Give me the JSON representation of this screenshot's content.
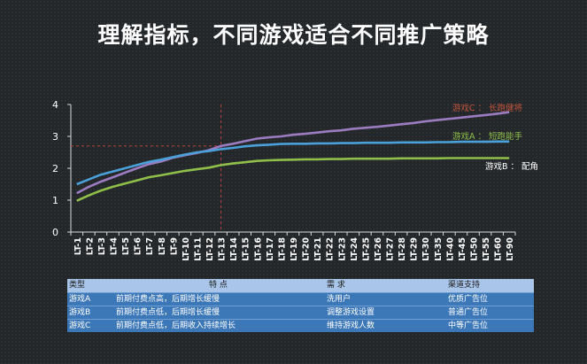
{
  "title": "理解指标，不同游戏适合不同推广策略",
  "chart_data": {
    "type": "line",
    "x": [
      "LT-1",
      "LT-2",
      "LT-3",
      "LT-4",
      "LT-5",
      "LT-6",
      "LT-7",
      "LT-8",
      "LT-9",
      "LT-10",
      "LT-11",
      "LT-12",
      "LT-13",
      "LT-14",
      "LT-15",
      "LT-16",
      "LT-17",
      "LT-18",
      "LT-19",
      "LT-20",
      "LT-21",
      "LT-22",
      "LT-23",
      "LT-24",
      "LT-25",
      "LT-26",
      "LT-27",
      "LT-28",
      "LT-29",
      "LT-30",
      "LT-35",
      "LT-40",
      "LT-45",
      "LT-50",
      "LT-55",
      "LT-60",
      "LT-90"
    ],
    "ylim": [
      0,
      4
    ],
    "yticks": [
      0,
      1,
      2,
      3,
      4
    ],
    "reference_lines": {
      "x": "LT-13",
      "y": 2.7,
      "color": "#b8403a",
      "style": "dashed"
    },
    "series": [
      {
        "name": "游戏C ： 长跑健将",
        "color": "#9b7cc0",
        "label_color": "#c0543d",
        "values": [
          1.22,
          1.42,
          1.58,
          1.72,
          1.86,
          2.0,
          2.13,
          2.21,
          2.33,
          2.41,
          2.48,
          2.57,
          2.7,
          2.77,
          2.85,
          2.93,
          2.97,
          3.0,
          3.05,
          3.08,
          3.12,
          3.16,
          3.19,
          3.24,
          3.27,
          3.3,
          3.34,
          3.38,
          3.42,
          3.47,
          3.51,
          3.55,
          3.59,
          3.63,
          3.67,
          3.71,
          3.76
        ]
      },
      {
        "name": "游戏A ： 短跑能手",
        "color": "#4aa0d8",
        "label_color": "#8fbf4a",
        "values": [
          1.5,
          1.65,
          1.8,
          1.9,
          2.0,
          2.1,
          2.2,
          2.27,
          2.35,
          2.43,
          2.5,
          2.54,
          2.6,
          2.64,
          2.69,
          2.72,
          2.74,
          2.76,
          2.77,
          2.77,
          2.78,
          2.78,
          2.79,
          2.79,
          2.8,
          2.8,
          2.8,
          2.81,
          2.81,
          2.81,
          2.82,
          2.82,
          2.83,
          2.83,
          2.83,
          2.84,
          2.84
        ]
      },
      {
        "name": "游戏B ： 配角",
        "color": "#8fbf4a",
        "label_color": "#ffffff",
        "values": [
          0.98,
          1.15,
          1.3,
          1.42,
          1.52,
          1.62,
          1.72,
          1.78,
          1.85,
          1.92,
          1.97,
          2.02,
          2.1,
          2.15,
          2.19,
          2.23,
          2.25,
          2.26,
          2.27,
          2.28,
          2.28,
          2.29,
          2.29,
          2.3,
          2.3,
          2.3,
          2.3,
          2.31,
          2.31,
          2.31,
          2.31,
          2.32,
          2.32,
          2.32,
          2.32,
          2.32,
          2.32
        ]
      }
    ]
  },
  "table": {
    "headers": [
      "类型",
      "特    点",
      "需    求",
      "渠道支持"
    ],
    "rows": [
      [
        "游戏A",
        "前期付费点高，后期增长缓慢",
        "洗用户",
        "优质广告位"
      ],
      [
        "游戏B",
        "前期付费点低，后期增长缓慢",
        "调整游戏设置",
        "普通广告位"
      ],
      [
        "游戏C",
        "前期付费点低，后期收入持续增长",
        "维持游戏人数",
        "中等广告位"
      ]
    ]
  }
}
